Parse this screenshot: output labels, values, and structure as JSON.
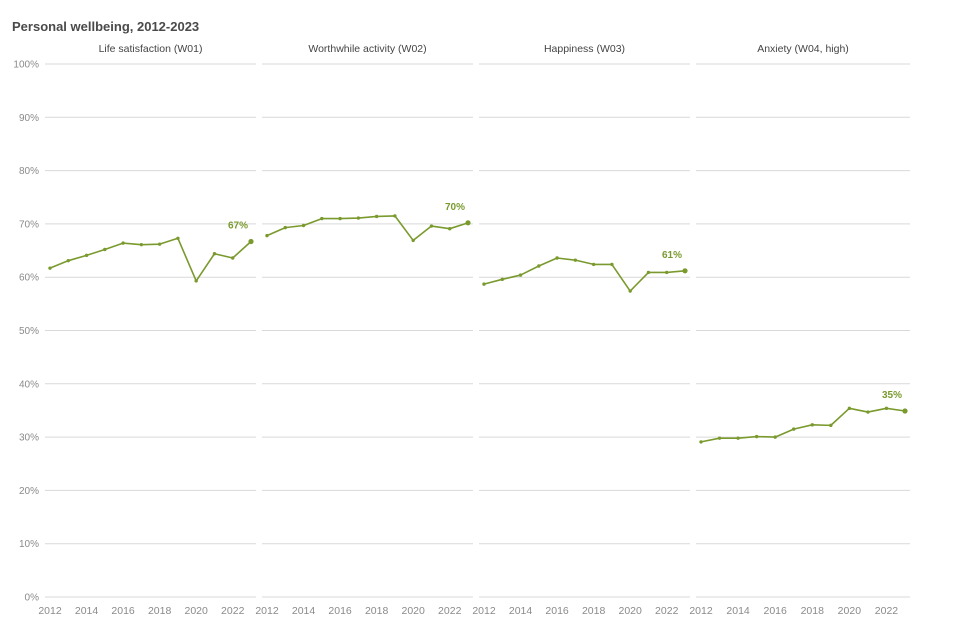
{
  "title": "Personal wellbeing, 2012-2023",
  "colors": {
    "line": "#7a9a2e",
    "grid": "#d9d9d9",
    "text": "#8a8a8a"
  },
  "chart_data": {
    "type": "line",
    "title": "Personal wellbeing, 2012-2023",
    "ylim": [
      0,
      100
    ],
    "y_unit": "%",
    "yticks": [
      "100%",
      "90%",
      "80%",
      "70%",
      "60%",
      "50%",
      "40%",
      "30%",
      "20%",
      "10%",
      "0%"
    ],
    "xticks": [
      "2012",
      "2014",
      "2016",
      "2018",
      "2020",
      "2022"
    ],
    "grid": true,
    "x": [
      2012,
      2013,
      2014,
      2015,
      2016,
      2017,
      2018,
      2019,
      2020,
      2021,
      2022,
      2023
    ],
    "panels": [
      {
        "title": "Life satisfaction (W01)",
        "last_label": "67%",
        "values": [
          61.7,
          63.1,
          64.1,
          65.2,
          66.4,
          66.1,
          66.2,
          67.3,
          59.3,
          64.4,
          63.6,
          66.7
        ]
      },
      {
        "title": "Worthwhile activity (W02)",
        "last_label": "70%",
        "values": [
          67.8,
          69.3,
          69.7,
          71.0,
          71.0,
          71.1,
          71.4,
          71.5,
          66.9,
          69.6,
          69.1,
          70.2
        ]
      },
      {
        "title": "Happiness (W03)",
        "last_label": "61%",
        "values": [
          58.7,
          59.6,
          60.4,
          62.1,
          63.6,
          63.2,
          62.4,
          62.4,
          57.4,
          60.9,
          60.9,
          61.2
        ]
      },
      {
        "title": "Anxiety (W04, high)",
        "last_label": "35%",
        "values": [
          29.1,
          29.8,
          29.8,
          30.1,
          30.0,
          31.5,
          32.3,
          32.2,
          35.4,
          34.7,
          35.4,
          34.9
        ]
      }
    ]
  }
}
